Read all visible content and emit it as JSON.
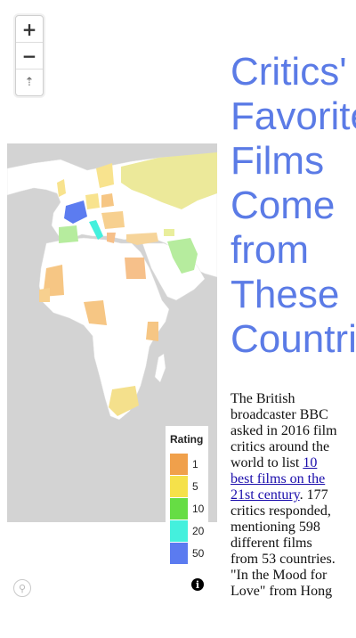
{
  "map": {
    "zoom_in_label": "+",
    "zoom_out_label": "−",
    "compass_label": "⇡",
    "ocean_color": "#d3d3d3",
    "land_color": "#ffffff",
    "legend": {
      "title": "Rating",
      "items": [
        {
          "label": "1",
          "color": "#f0a04b"
        },
        {
          "label": "5",
          "color": "#f5e14a"
        },
        {
          "label": "10",
          "color": "#66dd44"
        },
        {
          "label": "20",
          "color": "#44f0dd"
        },
        {
          "label": "50",
          "color": "#5b7bf0"
        }
      ]
    },
    "info_label": "i"
  },
  "article": {
    "title_lines": [
      "Critics'",
      "Favorite",
      "Films",
      "Come",
      "from",
      "These",
      "Countries"
    ],
    "body_before": "The British broadcaster BBC asked in 2016 film critics around the world to list ",
    "link_text": "10 best films on the 21st century",
    "body_after": ". 177 critics responded, mentioning 598 different films from 53 countries. \"In the Mood for Love\" from Hong"
  }
}
